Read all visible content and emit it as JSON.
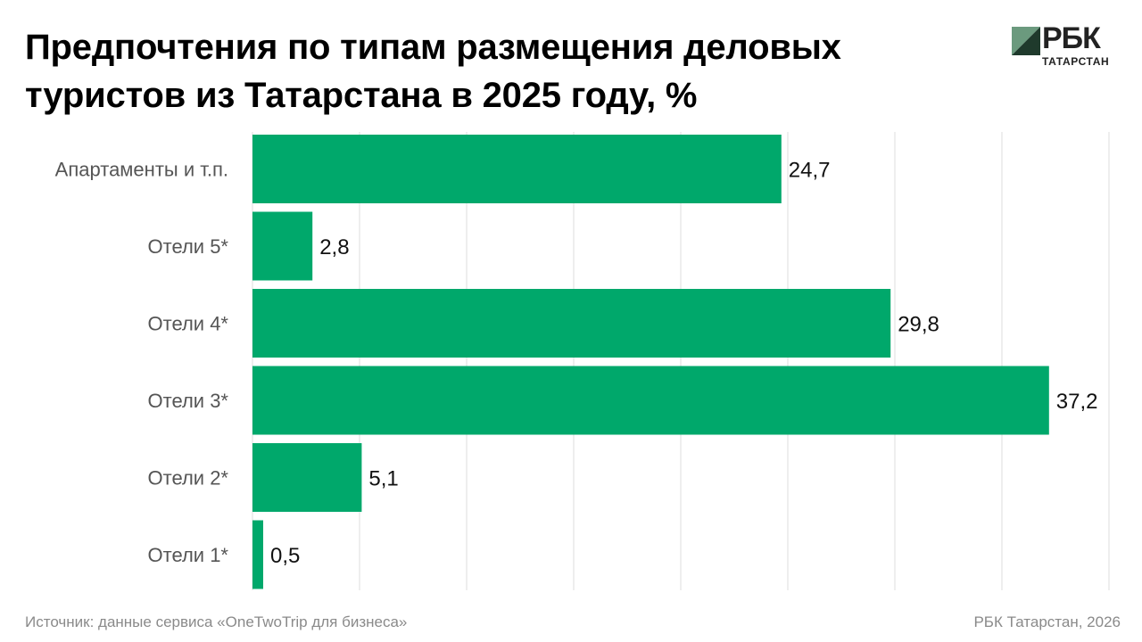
{
  "title_lines": [
    "Предпочтения по типам размещения деловых",
    "туристов из Татарстана в 2025 году, %"
  ],
  "logo": {
    "word": "РБК",
    "sub": "ТАТАРСТАН"
  },
  "footer": {
    "source": "Источник: данные сервиса «OneTwoTrip для бизнеса»",
    "credit": "РБК Татарстан, 2026"
  },
  "colors": {
    "bar": "#00a86b",
    "grid": "#dcdcdc",
    "logo_green": "#6b9a7e",
    "logo_dark": "#1f3a2c"
  },
  "chart_data": {
    "type": "bar",
    "orientation": "horizontal",
    "title": "Предпочтения по типам размещения деловых туристов из Татарстана в 2025 году, %",
    "categories": [
      "Апартаменты и т.п.",
      "Отели 5*",
      "Отели 4*",
      "Отели 3*",
      "Отели 2*",
      "Отели 1*"
    ],
    "values": [
      24.7,
      2.8,
      29.8,
      37.2,
      5.1,
      0.5
    ],
    "value_labels": [
      "24,7",
      "2,8",
      "29,8",
      "37,2",
      "5,1",
      "0,5"
    ],
    "xlim": [
      0,
      40
    ],
    "xlabel": "",
    "ylabel": "",
    "grid": true
  }
}
